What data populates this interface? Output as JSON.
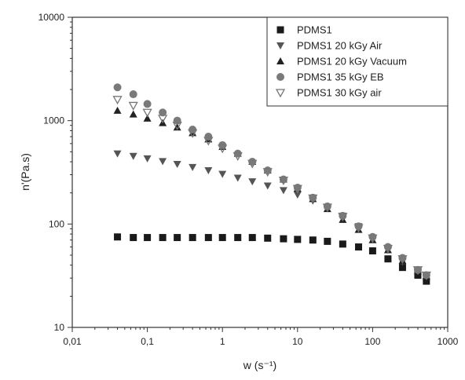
{
  "chart_data": {
    "type": "scatter",
    "x_scale": "log",
    "y_scale": "log",
    "xlim": [
      0.01,
      1000
    ],
    "ylim": [
      10,
      10000
    ],
    "xlabel": "w (s⁻¹)",
    "ylabel": "n'(Pa.s)",
    "x_ticks": [
      "0,01",
      "0,1",
      "1",
      "10",
      "100",
      "1000"
    ],
    "y_ticks": [
      "10",
      "100",
      "1000",
      "10000"
    ],
    "grid": false,
    "legend_position": "top-right",
    "x": [
      0.04,
      0.065,
      0.1,
      0.16,
      0.25,
      0.4,
      0.65,
      1.0,
      1.6,
      2.5,
      4.0,
      6.5,
      10,
      16,
      25,
      40,
      65,
      100,
      160,
      250,
      400,
      520
    ],
    "series": [
      {
        "name": "PDMS1",
        "marker": "square-filled",
        "color": "#1a1a1a",
        "values": [
          75,
          74,
          74,
          74,
          74,
          74,
          74,
          74,
          74,
          74,
          73,
          72,
          71,
          70,
          68,
          64,
          60,
          55,
          46,
          38,
          32,
          28
        ]
      },
      {
        "name": "PDMS1 20 kGy Air",
        "marker": "triangle-down-filled",
        "color": "#555555",
        "values": [
          480,
          455,
          430,
          405,
          380,
          355,
          330,
          305,
          280,
          258,
          235,
          212,
          192,
          168,
          145,
          120,
          95,
          72,
          56,
          43,
          35,
          31
        ]
      },
      {
        "name": "PDMS1 20 kGy Vacuum",
        "marker": "triangle-up-filled",
        "color": "#222222",
        "values": [
          1250,
          1150,
          1050,
          950,
          860,
          760,
          660,
          560,
          480,
          400,
          330,
          270,
          220,
          175,
          140,
          110,
          88,
          70,
          56,
          44,
          35,
          31
        ]
      },
      {
        "name": "PDMS1 35 kGy EB",
        "marker": "circle-filled",
        "color": "#7a7a7a",
        "values": [
          2100,
          1800,
          1450,
          1200,
          1000,
          820,
          700,
          580,
          480,
          400,
          330,
          270,
          225,
          180,
          148,
          120,
          95,
          75,
          60,
          47,
          36,
          32
        ]
      },
      {
        "name": "PDMS1 30 kGy air",
        "marker": "triangle-down-open",
        "color": "#777777",
        "values": [
          1600,
          1400,
          1200,
          1050,
          900,
          760,
          640,
          540,
          455,
          385,
          320,
          265,
          220,
          178,
          145,
          118,
          92,
          73,
          58,
          46,
          36,
          32
        ]
      }
    ]
  }
}
